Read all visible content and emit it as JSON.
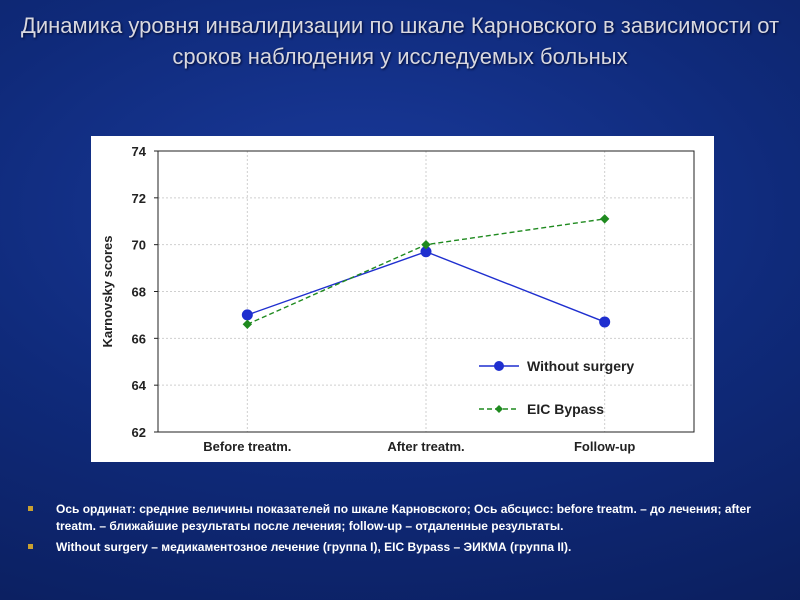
{
  "slide": {
    "title": "Динамика уровня инвалидизации по шкале Карновского в зависимости от сроков наблюдения у исследуемых больных"
  },
  "notes": [
    "Ось ординат: средние величины показателей по шкале Карновского; Ось абсцисс: before treatm. – до лечения; after treatm. – ближайшие результаты после лечения; follow-up – отдаленные результаты.",
    "Without surgery – медикаментозное лечение (группа I), EIC Bypass – ЭИКМА (группа II)."
  ],
  "colors": {
    "without_surgery": "#1f2fcf",
    "eic_bypass": "#1f8a1f",
    "bullet": "#c8a030"
  },
  "chart_data": {
    "type": "line",
    "title": "",
    "xlabel": "",
    "ylabel": "Karnovsky scores",
    "categories": [
      "Before treatm.",
      "After treatm.",
      "Follow-up"
    ],
    "ylim": [
      62,
      74
    ],
    "yticks": [
      62,
      64,
      66,
      68,
      70,
      72,
      74
    ],
    "grid": true,
    "legend_position": "bottom-right",
    "series": [
      {
        "name": "Without surgery",
        "values": [
          67.0,
          69.7,
          66.7
        ],
        "color": "#1f2fcf",
        "style": "solid",
        "marker": "circle"
      },
      {
        "name": "EIC Bypass",
        "values": [
          66.6,
          70.0,
          71.1
        ],
        "color": "#1f8a1f",
        "style": "dashed",
        "marker": "diamond"
      }
    ]
  }
}
